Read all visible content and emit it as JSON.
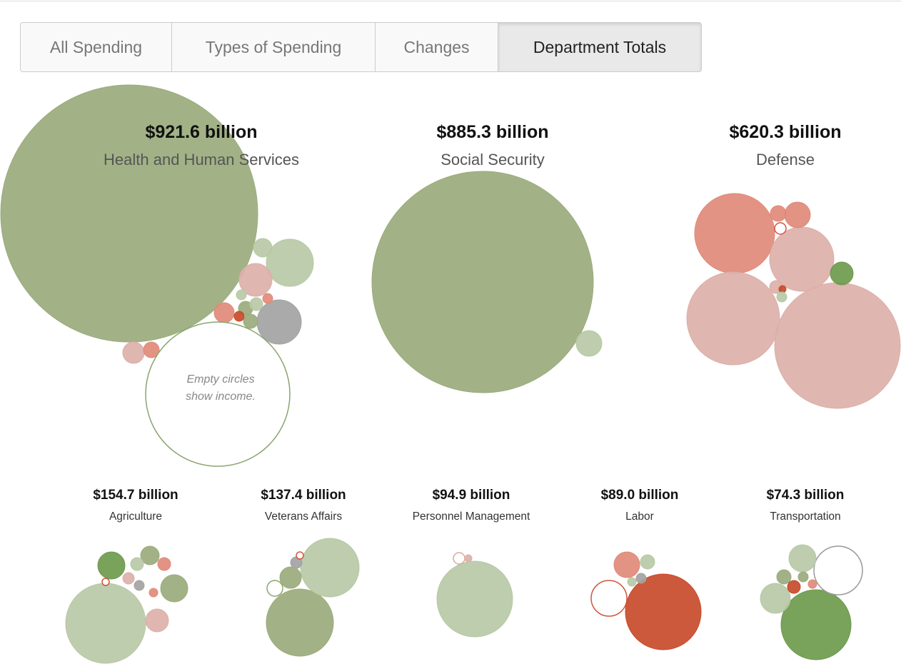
{
  "tabs": [
    "All Spending",
    "Types of Spending",
    "Changes",
    "Department Totals"
  ],
  "active_tab": 3,
  "departments": [
    {
      "amount": "$921.6 billion",
      "name": "Health and Human Services"
    },
    {
      "amount": "$885.3 billion",
      "name": "Social Security"
    },
    {
      "amount": "$620.3 billion",
      "name": "Defense"
    },
    {
      "amount": "$154.7 billion",
      "name": "Agriculture"
    },
    {
      "amount": "$137.4 billion",
      "name": "Veterans Affairs"
    },
    {
      "amount": "$94.9 billion",
      "name": "Personnel Management"
    },
    {
      "amount": "$89.0 billion",
      "name": "Labor"
    },
    {
      "amount": "$74.3 billion",
      "name": "Transportation"
    }
  ],
  "annotation": [
    "Empty circles",
    "show income."
  ]
}
